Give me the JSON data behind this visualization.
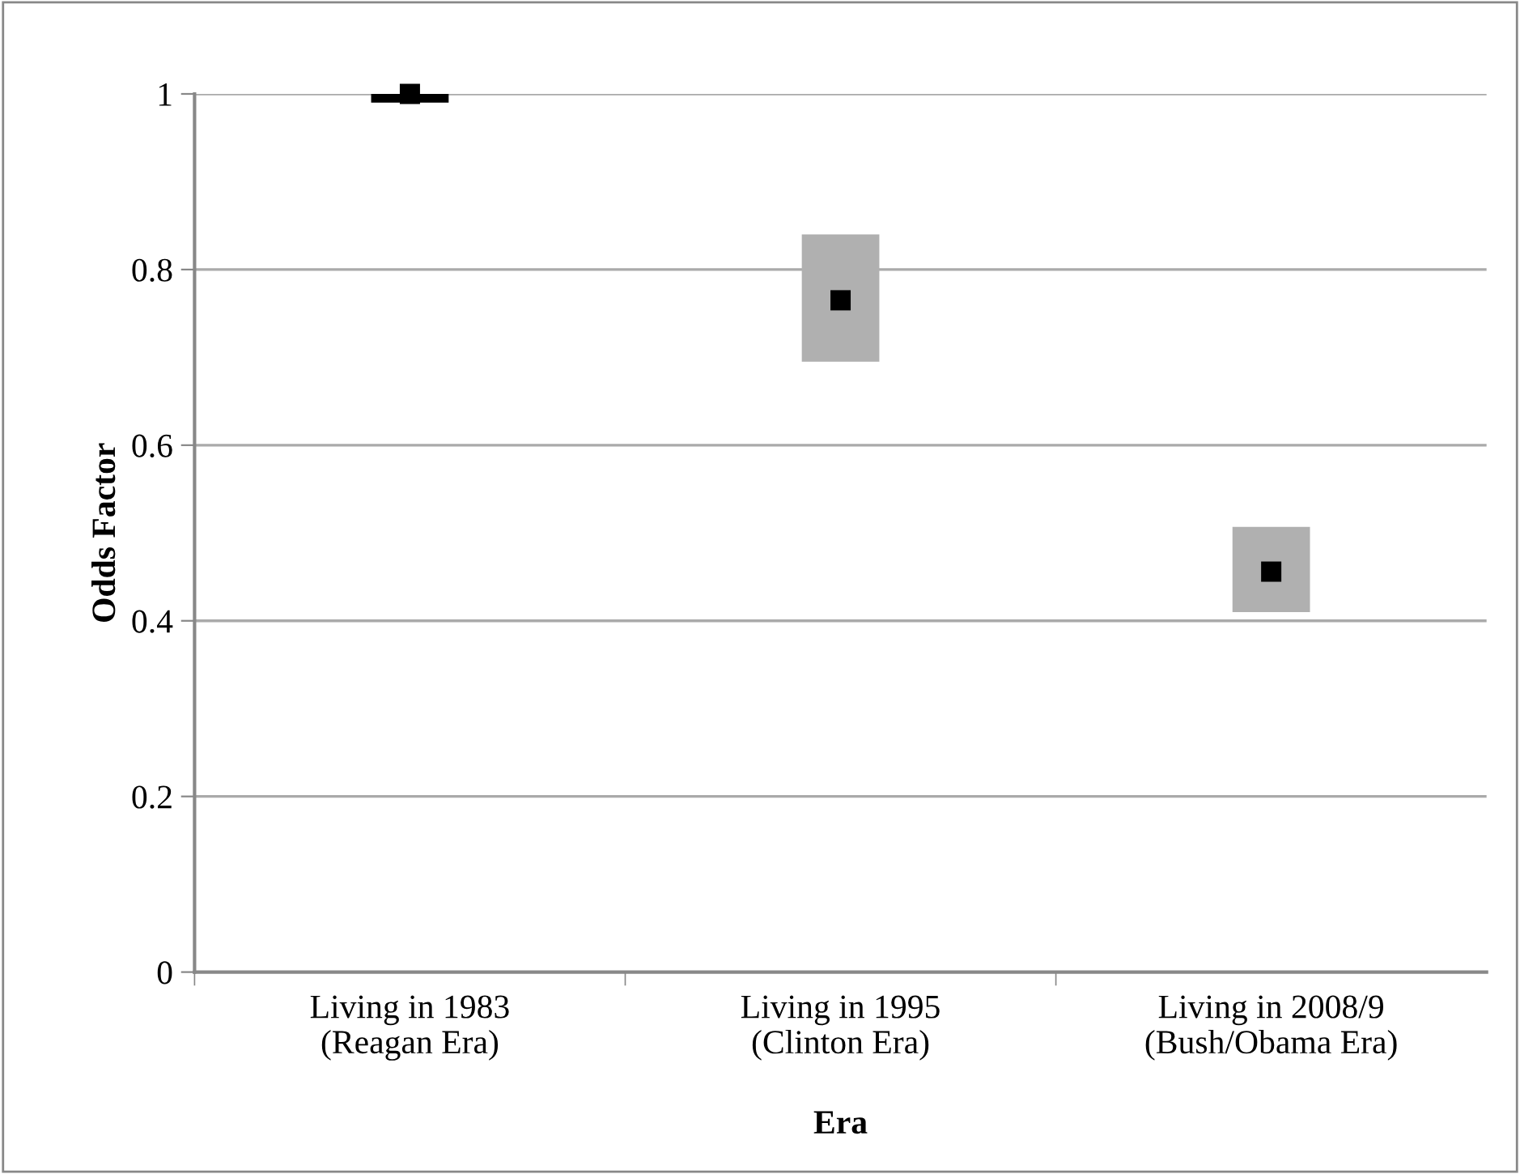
{
  "chart_data": {
    "type": "bar",
    "xlabel": "Era",
    "ylabel": "Odds Factor",
    "categories": [
      "Living in 1983\n(Reagan Era)",
      "Living in 1995\n(Clinton Era)",
      "Living in 2008/9\n(Bush/Obama Era)"
    ],
    "series": [
      {
        "base": [
          0.99,
          0.695,
          0.41
        ],
        "values": [
          0.01,
          0.145,
          0.097
        ],
        "colors": [
          "#000000",
          "#b0b0b0",
          "#b0b0b0"
        ]
      },
      {
        "type": "scatter",
        "marker": "square",
        "color": "#000000",
        "values": [
          1.0,
          0.765,
          0.456
        ]
      }
    ],
    "ylim": [
      0,
      1
    ],
    "yticks": [
      0,
      0.2,
      0.4,
      0.6,
      0.8,
      1
    ],
    "grid": "y"
  }
}
